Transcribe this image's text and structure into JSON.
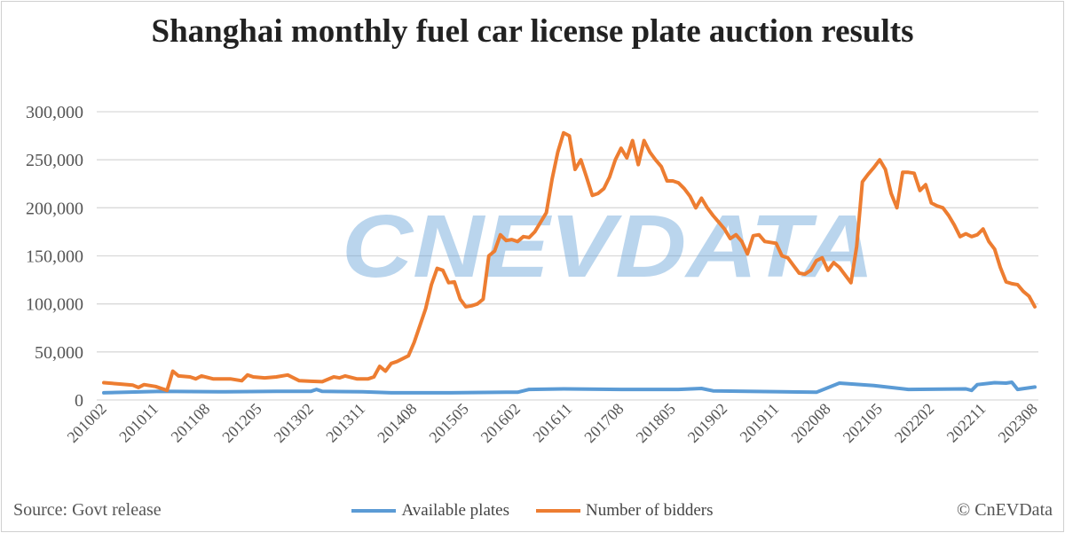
{
  "chart_data": {
    "type": "line",
    "title": "Shanghai monthly fuel car license plate auction results",
    "xlabel": "",
    "ylabel": "",
    "ylim": [
      0,
      300000
    ],
    "y_ticks": [
      "0",
      "50,000",
      "100,000",
      "150,000",
      "200,000",
      "250,000",
      "300,000"
    ],
    "y_tick_values": [
      0,
      50000,
      100000,
      150000,
      200000,
      250000,
      300000
    ],
    "x_start": "201002",
    "x_end": "202308",
    "month_count": 163,
    "x_tick_labels": [
      "201002",
      "201011",
      "201108",
      "201205",
      "201302",
      "201311",
      "201408",
      "201505",
      "201602",
      "201611",
      "201708",
      "201805",
      "201902",
      "201911",
      "202008",
      "202105",
      "202202",
      "202211",
      "202308"
    ],
    "grid": true,
    "legend_position": "bottom",
    "series": [
      {
        "name": "Available plates",
        "color": "#5b9bd5",
        "keypoints_month_index_value": [
          [
            0,
            7500
          ],
          [
            10,
            9000
          ],
          [
            20,
            8500
          ],
          [
            30,
            9000
          ],
          [
            36,
            9000
          ],
          [
            37,
            11000
          ],
          [
            38,
            9000
          ],
          [
            45,
            8500
          ],
          [
            50,
            7500
          ],
          [
            60,
            7500
          ],
          [
            70,
            8000
          ],
          [
            72,
            8000
          ],
          [
            74,
            11000
          ],
          [
            80,
            11500
          ],
          [
            90,
            11000
          ],
          [
            100,
            11000
          ],
          [
            104,
            12000
          ],
          [
            106,
            9500
          ],
          [
            118,
            8500
          ],
          [
            124,
            8000
          ],
          [
            128,
            17500
          ],
          [
            134,
            15000
          ],
          [
            140,
            11000
          ],
          [
            150,
            11500
          ],
          [
            151,
            10000
          ],
          [
            152,
            16000
          ],
          [
            155,
            18000
          ],
          [
            157,
            17500
          ],
          [
            158,
            18500
          ],
          [
            159,
            11000
          ],
          [
            162,
            13500
          ]
        ]
      },
      {
        "name": "Number of bidders",
        "color": "#ed7d31",
        "keypoints_month_index_value": [
          [
            0,
            18000
          ],
          [
            3,
            16500
          ],
          [
            5,
            15500
          ],
          [
            6,
            13000
          ],
          [
            7,
            16000
          ],
          [
            9,
            14000
          ],
          [
            10,
            12000
          ],
          [
            11,
            10000
          ],
          [
            12,
            30000
          ],
          [
            13,
            25000
          ],
          [
            15,
            24000
          ],
          [
            16,
            22000
          ],
          [
            17,
            25000
          ],
          [
            19,
            22000
          ],
          [
            22,
            22000
          ],
          [
            24,
            20000
          ],
          [
            25,
            26000
          ],
          [
            26,
            24000
          ],
          [
            28,
            23000
          ],
          [
            30,
            24000
          ],
          [
            32,
            26000
          ],
          [
            34,
            20000
          ],
          [
            36,
            19500
          ],
          [
            38,
            19000
          ],
          [
            40,
            24000
          ],
          [
            41,
            23000
          ],
          [
            42,
            25000
          ],
          [
            44,
            22000
          ],
          [
            46,
            22000
          ],
          [
            47,
            24000
          ],
          [
            48,
            35000
          ],
          [
            49,
            30000
          ],
          [
            50,
            38000
          ],
          [
            51,
            40000
          ],
          [
            53,
            46000
          ],
          [
            54,
            60000
          ],
          [
            56,
            95000
          ],
          [
            57,
            120000
          ],
          [
            58,
            137000
          ],
          [
            59,
            135000
          ],
          [
            60,
            122000
          ],
          [
            61,
            123000
          ],
          [
            62,
            105000
          ],
          [
            63,
            97000
          ],
          [
            64,
            98000
          ],
          [
            65,
            100000
          ],
          [
            66,
            105000
          ],
          [
            67,
            150000
          ],
          [
            68,
            155000
          ],
          [
            69,
            172000
          ],
          [
            70,
            166000
          ],
          [
            71,
            167000
          ],
          [
            72,
            165000
          ],
          [
            73,
            170000
          ],
          [
            74,
            169000
          ],
          [
            75,
            175000
          ],
          [
            76,
            185000
          ],
          [
            77,
            195000
          ],
          [
            78,
            230000
          ],
          [
            79,
            258000
          ],
          [
            80,
            278000
          ],
          [
            81,
            275000
          ],
          [
            82,
            240000
          ],
          [
            83,
            250000
          ],
          [
            84,
            232000
          ],
          [
            85,
            213000
          ],
          [
            86,
            215000
          ],
          [
            87,
            220000
          ],
          [
            88,
            232000
          ],
          [
            89,
            250000
          ],
          [
            90,
            262000
          ],
          [
            91,
            252000
          ],
          [
            92,
            270000
          ],
          [
            93,
            245000
          ],
          [
            94,
            270000
          ],
          [
            95,
            258000
          ],
          [
            96,
            250000
          ],
          [
            97,
            243000
          ],
          [
            98,
            228000
          ],
          [
            99,
            228000
          ],
          [
            100,
            226000
          ],
          [
            101,
            220000
          ],
          [
            102,
            212000
          ],
          [
            103,
            200000
          ],
          [
            104,
            210000
          ],
          [
            105,
            200000
          ],
          [
            106,
            192000
          ],
          [
            107,
            185000
          ],
          [
            108,
            178000
          ],
          [
            109,
            168000
          ],
          [
            110,
            172000
          ],
          [
            111,
            165000
          ],
          [
            112,
            152000
          ],
          [
            113,
            171000
          ],
          [
            114,
            172000
          ],
          [
            115,
            165000
          ],
          [
            116,
            164000
          ],
          [
            117,
            163000
          ],
          [
            118,
            150000
          ],
          [
            119,
            148000
          ],
          [
            120,
            140000
          ],
          [
            121,
            132000
          ],
          [
            122,
            131000
          ],
          [
            123,
            135000
          ],
          [
            124,
            145000
          ],
          [
            125,
            148000
          ],
          [
            126,
            135000
          ],
          [
            127,
            143000
          ],
          [
            128,
            138000
          ],
          [
            129,
            130000
          ],
          [
            130,
            122000
          ],
          [
            131,
            160000
          ],
          [
            132,
            227000
          ],
          [
            133,
            235000
          ],
          [
            134,
            242000
          ],
          [
            135,
            250000
          ],
          [
            136,
            240000
          ],
          [
            137,
            215000
          ],
          [
            138,
            200000
          ],
          [
            139,
            237000
          ],
          [
            140,
            237000
          ],
          [
            141,
            236000
          ],
          [
            142,
            218000
          ],
          [
            143,
            224000
          ],
          [
            144,
            205000
          ],
          [
            145,
            202000
          ],
          [
            146,
            200000
          ],
          [
            147,
            192000
          ],
          [
            148,
            182000
          ],
          [
            149,
            170000
          ],
          [
            150,
            173000
          ],
          [
            151,
            170000
          ],
          [
            152,
            172000
          ],
          [
            153,
            178000
          ],
          [
            154,
            165000
          ],
          [
            155,
            157000
          ],
          [
            156,
            138000
          ],
          [
            157,
            123000
          ],
          [
            158,
            121000
          ],
          [
            159,
            120000
          ],
          [
            160,
            113000
          ],
          [
            161,
            108000
          ],
          [
            162,
            97000
          ]
        ]
      }
    ],
    "watermark": "CNEVDATA"
  },
  "footer": {
    "source": "Source: Govt release",
    "copyright": "© CnEVData"
  }
}
